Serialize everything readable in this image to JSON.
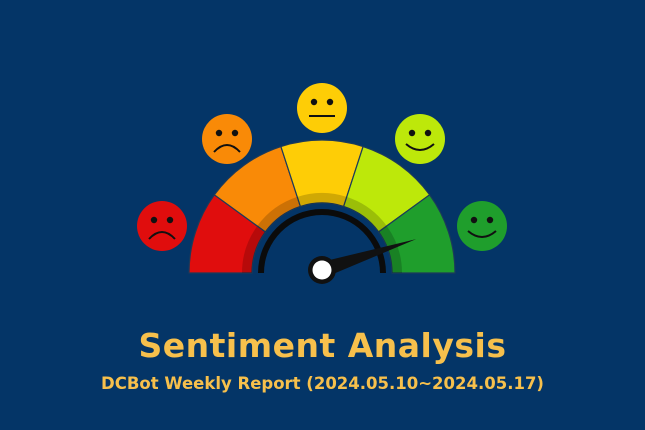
{
  "title": "Sentiment Analysis",
  "subtitle": "DCBot Weekly Report (2024.05.10~2024.05.17)",
  "gauge": {
    "segment_colors": [
      "#e00d0d",
      "#f98a07",
      "#fecd06",
      "#bde80a",
      "#1f9e2c"
    ],
    "faces": [
      {
        "mood": "very-sad",
        "color": "#e00d0d"
      },
      {
        "mood": "sad",
        "color": "#f98a07"
      },
      {
        "mood": "neutral",
        "color": "#fecd06"
      },
      {
        "mood": "happy",
        "color": "#bde80a"
      },
      {
        "mood": "very-happy",
        "color": "#1f9e2c"
      }
    ],
    "needle_fraction": 0.89
  },
  "colors": {
    "background": "#043567",
    "text": "#f7c04c"
  }
}
